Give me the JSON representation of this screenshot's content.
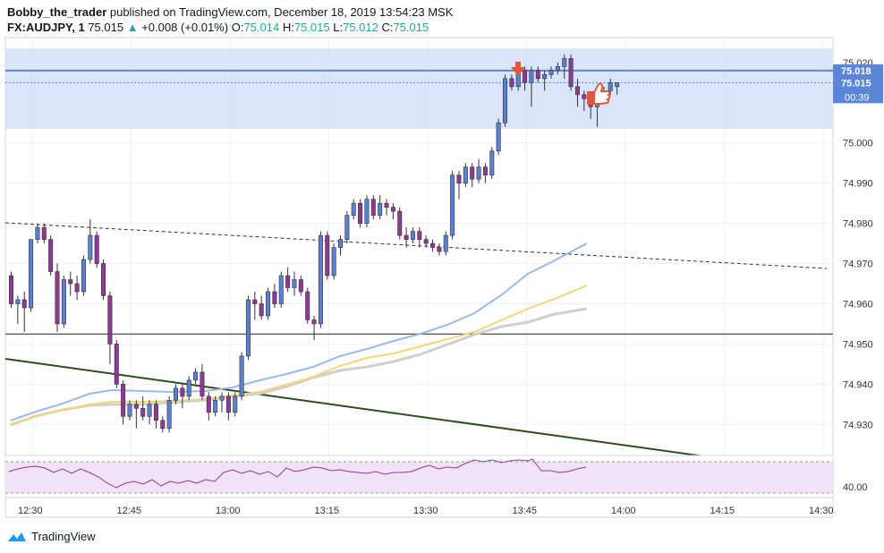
{
  "header": {
    "author": "Bobby_the_trader",
    "published_text": " published on TradingView.com, December 18, 2019 13:54:23 MSK",
    "symbol": "FX:AUDJPY, 1",
    "last": "75.015",
    "change": "+0.008 (+0.01%)",
    "o_label": "O:",
    "o_value": "75.014",
    "h_label": "H:",
    "h_value": "75.015",
    "l_label": "L:",
    "l_value": "75.012",
    "c_label": "C:",
    "c_value": "75.015"
  },
  "footer": {
    "brand": "TradingView"
  },
  "colors": {
    "up_body": "#5b7fd1",
    "down_body": "#8e3a94",
    "wick": "#333333",
    "zone": "#d3e1f8",
    "ema_fast": "#9bbbe6",
    "ema_mid": "#f0d77a",
    "ema_slow": "#cfcfcf",
    "trend": "#2e4d1e",
    "blue_line": "#5b86d6",
    "rsi_line": "#8e3a94",
    "rsi_band": "#f1e2f7",
    "marker": "#e0573f"
  },
  "chart_data": {
    "type": "candlestick",
    "price_ticks": [
      "75.020",
      "75.000",
      "74.990",
      "74.980",
      "74.970",
      "74.960",
      "74.950",
      "74.940",
      "74.930"
    ],
    "price_labels": {
      "line_1": "75.018",
      "last": "75.015",
      "countdown": "00:39"
    },
    "rsi_tick": "40.00",
    "time_ticks": [
      "12:30",
      "12:45",
      "13:00",
      "13:15",
      "13:30",
      "13:45",
      "14:00",
      "14:15",
      "14:30"
    ],
    "y_range": [
      74.9225,
      75.0262
    ],
    "zone": [
      75.0035,
      75.0235
    ],
    "horizontal_levels": [
      75.018,
      74.9525
    ],
    "candles_ohlc": [
      [
        74.967,
        74.968,
        74.959,
        74.96
      ],
      [
        74.96,
        74.962,
        74.955,
        74.961
      ],
      [
        74.961,
        74.963,
        74.953,
        74.959
      ],
      [
        74.959,
        74.976,
        74.958,
        74.976
      ],
      [
        74.976,
        74.98,
        74.975,
        74.979
      ],
      [
        74.979,
        74.98,
        74.975,
        74.976
      ],
      [
        74.976,
        74.977,
        74.967,
        74.968
      ],
      [
        74.968,
        74.97,
        74.953,
        74.955
      ],
      [
        74.955,
        74.967,
        74.954,
        74.966
      ],
      [
        74.966,
        74.968,
        74.962,
        74.965
      ],
      [
        74.965,
        74.967,
        74.961,
        74.963
      ],
      [
        74.963,
        74.972,
        74.962,
        74.971
      ],
      [
        74.971,
        74.981,
        74.97,
        74.977
      ],
      [
        74.977,
        74.978,
        74.969,
        74.97
      ],
      [
        74.97,
        74.971,
        74.961,
        74.962
      ],
      [
        74.962,
        74.963,
        74.945,
        74.95
      ],
      [
        74.95,
        74.951,
        74.939,
        74.94
      ],
      [
        74.94,
        74.941,
        74.93,
        74.932
      ],
      [
        74.932,
        74.936,
        74.931,
        74.935
      ],
      [
        74.935,
        74.936,
        74.929,
        74.934
      ],
      [
        74.934,
        74.937,
        74.931,
        74.932
      ],
      [
        74.932,
        74.936,
        74.93,
        74.935
      ],
      [
        74.935,
        74.936,
        74.929,
        74.931
      ],
      [
        74.931,
        74.932,
        74.928,
        74.929
      ],
      [
        74.929,
        74.937,
        74.928,
        74.936
      ],
      [
        74.936,
        74.94,
        74.935,
        74.939
      ],
      [
        74.939,
        74.94,
        74.934,
        74.937
      ],
      [
        74.937,
        74.942,
        74.936,
        74.941
      ],
      [
        74.941,
        74.944,
        74.94,
        74.943
      ],
      [
        74.943,
        74.945,
        74.936,
        74.937
      ],
      [
        74.937,
        74.938,
        74.931,
        74.933
      ],
      [
        74.933,
        74.937,
        74.932,
        74.936
      ],
      [
        74.936,
        74.938,
        74.933,
        74.937
      ],
      [
        74.937,
        74.938,
        74.931,
        74.933
      ],
      [
        74.933,
        74.938,
        74.932,
        74.937
      ],
      [
        74.937,
        74.948,
        74.936,
        74.947
      ],
      [
        74.947,
        74.962,
        74.946,
        74.961
      ],
      [
        74.961,
        74.963,
        74.956,
        74.96
      ],
      [
        74.96,
        74.962,
        74.956,
        74.957
      ],
      [
        74.957,
        74.964,
        74.956,
        74.963
      ],
      [
        74.963,
        74.965,
        74.959,
        74.96
      ],
      [
        74.96,
        74.968,
        74.959,
        74.967
      ],
      [
        74.967,
        74.969,
        74.963,
        74.964
      ],
      [
        74.964,
        74.968,
        74.962,
        74.966
      ],
      [
        74.966,
        74.967,
        74.962,
        74.963
      ],
      [
        74.963,
        74.964,
        74.955,
        74.956
      ],
      [
        74.956,
        74.957,
        74.951,
        74.955
      ],
      [
        74.955,
        74.978,
        74.954,
        74.977
      ],
      [
        74.977,
        74.978,
        74.966,
        74.967
      ],
      [
        74.967,
        74.975,
        74.966,
        74.974
      ],
      [
        74.974,
        74.977,
        74.972,
        74.976
      ],
      [
        74.976,
        74.983,
        74.975,
        74.982
      ],
      [
        74.982,
        74.986,
        74.981,
        74.985
      ],
      [
        74.985,
        74.986,
        74.979,
        74.98
      ],
      [
        74.98,
        74.987,
        74.979,
        74.986
      ],
      [
        74.986,
        74.987,
        74.981,
        74.982
      ],
      [
        74.982,
        74.987,
        74.981,
        74.985
      ],
      [
        74.985,
        74.986,
        74.982,
        74.984
      ],
      [
        74.984,
        74.985,
        74.981,
        74.983
      ],
      [
        74.983,
        74.984,
        74.976,
        74.977
      ],
      [
        74.977,
        74.979,
        74.974,
        74.976
      ],
      [
        74.976,
        74.979,
        74.975,
        74.978
      ],
      [
        74.978,
        74.979,
        74.974,
        74.976
      ],
      [
        74.976,
        74.977,
        74.974,
        74.975
      ],
      [
        74.975,
        74.976,
        74.973,
        74.974
      ],
      [
        74.974,
        74.975,
        74.972,
        74.973
      ],
      [
        74.973,
        74.978,
        74.972,
        74.977
      ],
      [
        74.977,
        74.993,
        74.976,
        74.992
      ],
      [
        74.992,
        74.993,
        74.986,
        74.99
      ],
      [
        74.99,
        74.995,
        74.989,
        74.994
      ],
      [
        74.994,
        74.995,
        74.989,
        74.991
      ],
      [
        74.991,
        74.996,
        74.99,
        74.994
      ],
      [
        74.994,
        74.995,
        74.99,
        74.992
      ],
      [
        74.992,
        74.999,
        74.991,
        74.998
      ],
      [
        74.998,
        75.006,
        74.997,
        75.005
      ],
      [
        75.005,
        75.017,
        75.004,
        75.016
      ],
      [
        75.016,
        75.017,
        75.013,
        75.014
      ],
      [
        75.014,
        75.019,
        75.013,
        75.018
      ],
      [
        75.018,
        75.019,
        75.013,
        75.015
      ],
      [
        75.015,
        75.019,
        75.009,
        75.018
      ],
      [
        75.018,
        75.019,
        75.015,
        75.016
      ],
      [
        75.016,
        75.018,
        75.013,
        75.017
      ],
      [
        75.017,
        75.019,
        75.016,
        75.018
      ],
      [
        75.018,
        75.02,
        75.017,
        75.019
      ],
      [
        75.019,
        75.022,
        75.016,
        75.021
      ],
      [
        75.021,
        75.022,
        75.013,
        75.014
      ],
      [
        75.014,
        75.016,
        75.009,
        75.012
      ],
      [
        75.012,
        75.013,
        75.008,
        75.011
      ],
      [
        75.011,
        75.012,
        75.006,
        75.009
      ],
      [
        75.009,
        75.013,
        75.004,
        75.012
      ],
      [
        75.012,
        75.014,
        75.01,
        75.013
      ],
      [
        75.013,
        75.016,
        75.012,
        75.015
      ],
      [
        75.014,
        75.015,
        75.012,
        75.015
      ]
    ]
  }
}
